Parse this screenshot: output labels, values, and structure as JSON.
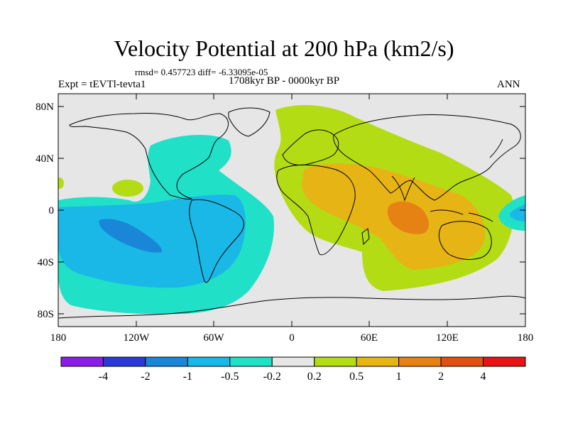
{
  "title": "Velocity Potential at 200 hPa (km2/s)",
  "stats_line": "rmsd= 0.457723 diff= -6.33095e-05",
  "period": "1708kyr BP - 0000kyr BP",
  "experiment": "Expt = tEVTl-tevta1",
  "season": "ANN",
  "lat_ticks": [
    "80N",
    "40N",
    "0",
    "40S",
    "80S"
  ],
  "lon_ticks": [
    "180",
    "120W",
    "60W",
    "0",
    "60E",
    "120E",
    "180"
  ],
  "colorbar": {
    "labels": [
      "-4",
      "-2",
      "-1",
      "-0.5",
      "-0.2",
      "0.2",
      "0.5",
      "1",
      "2",
      "4"
    ],
    "colors": [
      "#8a1ee6",
      "#2a3ad4",
      "#1a86d8",
      "#1ab8e6",
      "#20e0c8",
      "#e6e6e6",
      "#b4dc14",
      "#e6b414",
      "#e68214",
      "#e05010",
      "#e61414"
    ]
  },
  "colors": {
    "land_neutral": "#e6e6e6",
    "coast": "#000000"
  }
}
